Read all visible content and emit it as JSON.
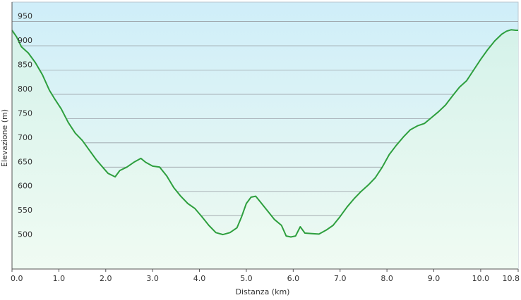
{
  "chart_data": {
    "type": "area",
    "xlabel": "Distanza  (km)",
    "ylabel": "Elevazione (m)",
    "xlim": [
      0,
      10.8
    ],
    "ylim": [
      440,
      990
    ],
    "x_ticks": [
      0,
      1,
      2,
      3,
      4,
      5,
      6,
      7,
      8,
      9,
      10,
      10.8
    ],
    "x_tick_labels": [
      "0.0",
      "1.0",
      "2.0",
      "3.0",
      "4.0",
      "5.0",
      "6.0",
      "7.0",
      "8.0",
      "9.0",
      "10.0",
      "10.8"
    ],
    "y_ticks": [
      500,
      550,
      600,
      650,
      700,
      750,
      800,
      850,
      900,
      950
    ],
    "y_tick_labels": [
      "500",
      "550",
      "600",
      "650",
      "700",
      "750",
      "800",
      "850",
      "900",
      "950"
    ],
    "grid": true,
    "colors": {
      "line": "#2e9f3e",
      "bg_top": "#cfeef9",
      "bg_bottom": "#eefaf0",
      "fill_top": "#d5f2ea",
      "fill_bottom": "#f0fbf3",
      "grid": "#9aa0a6",
      "axis": "#555555"
    },
    "series": [
      {
        "x": [
          0.0,
          0.1,
          0.2,
          0.35,
          0.5,
          0.65,
          0.8,
          0.9,
          1.05,
          1.2,
          1.35,
          1.5,
          1.65,
          1.8,
          1.95,
          2.05,
          2.2,
          2.3,
          2.45,
          2.6,
          2.75,
          2.85,
          3.0,
          3.15,
          3.3,
          3.45,
          3.6,
          3.75,
          3.9,
          4.05,
          4.2,
          4.35,
          4.5,
          4.65,
          4.8,
          4.9,
          5.0,
          5.1,
          5.2,
          5.3,
          5.45,
          5.6,
          5.75,
          5.85,
          5.95,
          6.05,
          6.15,
          6.25,
          6.4,
          6.55,
          6.7,
          6.85,
          7.0,
          7.15,
          7.3,
          7.45,
          7.6,
          7.75,
          7.9,
          8.05,
          8.2,
          8.35,
          8.5,
          8.65,
          8.8,
          8.95,
          9.1,
          9.25,
          9.4,
          9.55,
          9.7,
          9.85,
          10.0,
          10.15,
          10.3,
          10.45,
          10.55,
          10.65,
          10.75,
          10.8
        ],
        "y": [
          932,
          918,
          898,
          885,
          865,
          840,
          808,
          792,
          770,
          742,
          720,
          705,
          685,
          665,
          648,
          637,
          630,
          643,
          650,
          660,
          668,
          660,
          652,
          650,
          632,
          608,
          590,
          575,
          565,
          548,
          530,
          515,
          511,
          515,
          525,
          548,
          575,
          588,
          590,
          578,
          560,
          542,
          530,
          508,
          506,
          508,
          527,
          514,
          513,
          512,
          520,
          530,
          548,
          568,
          585,
          600,
          613,
          628,
          650,
          676,
          695,
          712,
          727,
          735,
          740,
          752,
          764,
          778,
          797,
          815,
          828,
          850,
          872,
          892,
          910,
          924,
          930,
          933,
          932,
          932
        ]
      }
    ]
  }
}
